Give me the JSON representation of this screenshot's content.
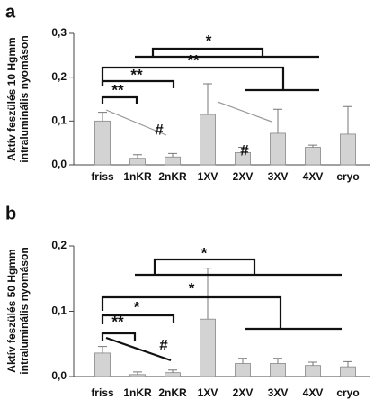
{
  "chart_data": [
    {
      "type": "bar",
      "panel": "a",
      "ylabel": [
        "Aktív feszülés 10 Hgmm",
        "intraluminális nyomáson"
      ],
      "categories": [
        "friss",
        "1nKR",
        "2nKR",
        "1XV",
        "2XV",
        "3XV",
        "4XV",
        "cryo"
      ],
      "values": [
        0.1,
        0.015,
        0.018,
        0.115,
        0.028,
        0.072,
        0.04,
        0.07
      ],
      "errors": [
        0.02,
        0.008,
        0.008,
        0.07,
        0.012,
        0.055,
        0.005,
        0.063
      ],
      "color": "#d3d3d3",
      "ylim": [
        0,
        0.3
      ],
      "yticks": [
        {
          "value": 0,
          "label": "0,0"
        },
        {
          "value": 0.1,
          "label": "0,1"
        },
        {
          "value": 0.2,
          "label": "0,2"
        },
        {
          "value": 0.3,
          "label": "0,3"
        }
      ],
      "annotations": [
        "*",
        "**",
        "**",
        "**",
        "#",
        "#"
      ]
    },
    {
      "type": "bar",
      "panel": "b",
      "ylabel": [
        "Aktív feszülés 50 Hgmm",
        "intraluminális nyomáson"
      ],
      "categories": [
        "friss",
        "1nKR",
        "2nKR",
        "1XV",
        "2XV",
        "3XV",
        "4XV",
        "cryo"
      ],
      "values": [
        0.036,
        0.003,
        0.006,
        0.088,
        0.02,
        0.02,
        0.017,
        0.015
      ],
      "errors": [
        0.01,
        0.004,
        0.004,
        0.078,
        0.008,
        0.008,
        0.005,
        0.008
      ],
      "color": "#d3d3d3",
      "ylim": [
        0,
        0.2
      ],
      "yticks": [
        {
          "value": 0,
          "label": "0,0"
        },
        {
          "value": 0.1,
          "label": "0,1"
        },
        {
          "value": 0.2,
          "label": "0,2"
        }
      ],
      "annotations": [
        "*",
        "*",
        "*",
        "**",
        "#"
      ]
    }
  ]
}
